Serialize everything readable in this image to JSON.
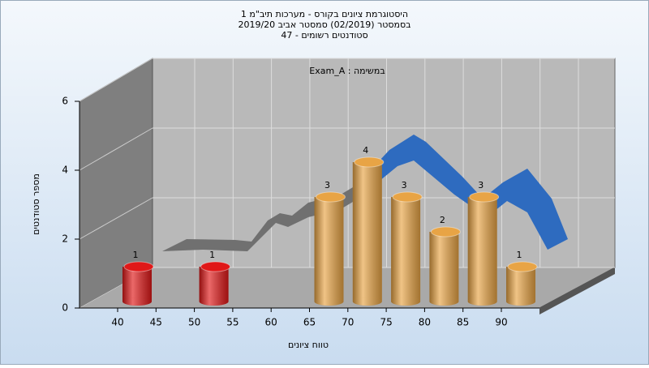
{
  "chart_data": {
    "type": "bar",
    "title": [
      "היסטוגרמת ציונים בקורס - מערכות תיב\"מ 1",
      "בסמסטר  (02/2019)  סמסטר אביב 2019/20",
      "סטודנטים רשומים - 47"
    ],
    "annotation": "Exam_A : במשימה",
    "y_label": "מספר סטודנטים",
    "x_label": "טווח ציונים",
    "categories": [
      "40",
      "45",
      "50",
      "55",
      "60",
      "65",
      "70",
      "75",
      "80",
      "85",
      "90"
    ],
    "values": [
      1,
      0,
      1,
      0,
      0,
      3,
      4,
      3,
      2,
      3,
      1
    ],
    "colors": [
      "#e01818",
      "#e01818",
      "#e01818",
      "#e01818",
      "#e01818",
      "#e8a445",
      "#e8a445",
      "#e8a445",
      "#e8a445",
      "#e8a445",
      "#e8a445"
    ],
    "ylim": [
      0,
      6
    ],
    "yticks": [
      0,
      2,
      4,
      6
    ],
    "grid": true
  }
}
